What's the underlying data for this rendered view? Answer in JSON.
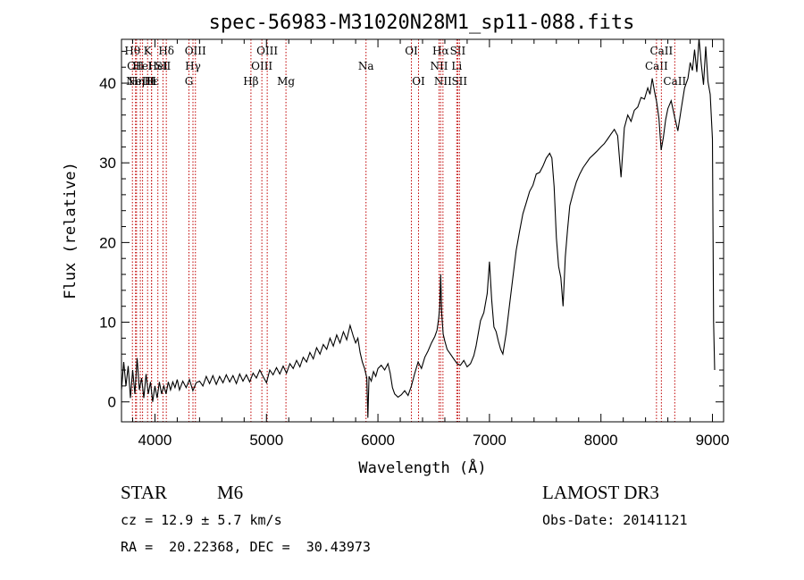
{
  "chart_data": {
    "type": "line",
    "title": "spec-56983-M31020N28M1_sp11-088.fits",
    "xlabel": "Wavelength (Å)",
    "ylabel": "Flux (relative)",
    "xlim": [
      3700,
      9100
    ],
    "ylim": [
      -2.5,
      45.5
    ],
    "xticks": [
      4000,
      5000,
      6000,
      7000,
      8000,
      9000
    ],
    "yticks": [
      0,
      10,
      20,
      30,
      40
    ],
    "grid": false,
    "series": [
      {
        "points": [
          [
            3700,
            1.5
          ],
          [
            3720,
            5.0
          ],
          [
            3740,
            2.0
          ],
          [
            3760,
            4.5
          ],
          [
            3780,
            0.5
          ],
          [
            3800,
            4.0
          ],
          [
            3820,
            1.0
          ],
          [
            3840,
            5.5
          ],
          [
            3860,
            1.5
          ],
          [
            3880,
            3.0
          ],
          [
            3900,
            0.5
          ],
          [
            3920,
            3.5
          ],
          [
            3940,
            1.0
          ],
          [
            3960,
            2.5
          ],
          [
            3980,
            0.0
          ],
          [
            4000,
            2.0
          ],
          [
            4020,
            0.5
          ],
          [
            4040,
            2.5
          ],
          [
            4060,
            1.0
          ],
          [
            4080,
            2.0
          ],
          [
            4100,
            1.0
          ],
          [
            4120,
            2.5
          ],
          [
            4140,
            1.5
          ],
          [
            4160,
            2.5
          ],
          [
            4180,
            1.8
          ],
          [
            4200,
            2.8
          ],
          [
            4220,
            1.5
          ],
          [
            4250,
            2.6
          ],
          [
            4280,
            1.8
          ],
          [
            4310,
            2.8
          ],
          [
            4340,
            1.4
          ],
          [
            4370,
            2.4
          ],
          [
            4400,
            2.6
          ],
          [
            4430,
            2.0
          ],
          [
            4460,
            3.2
          ],
          [
            4490,
            2.3
          ],
          [
            4520,
            3.3
          ],
          [
            4550,
            2.2
          ],
          [
            4580,
            3.2
          ],
          [
            4610,
            2.4
          ],
          [
            4640,
            3.4
          ],
          [
            4670,
            2.5
          ],
          [
            4700,
            3.3
          ],
          [
            4730,
            2.3
          ],
          [
            4760,
            3.5
          ],
          [
            4790,
            2.6
          ],
          [
            4820,
            3.4
          ],
          [
            4850,
            2.5
          ],
          [
            4880,
            3.6
          ],
          [
            4910,
            3.0
          ],
          [
            4940,
            4.0
          ],
          [
            4970,
            3.2
          ],
          [
            5000,
            2.4
          ],
          [
            5030,
            4.0
          ],
          [
            5060,
            3.4
          ],
          [
            5090,
            4.3
          ],
          [
            5120,
            3.5
          ],
          [
            5150,
            4.5
          ],
          [
            5180,
            3.6
          ],
          [
            5210,
            4.8
          ],
          [
            5240,
            4.2
          ],
          [
            5270,
            5.2
          ],
          [
            5300,
            4.4
          ],
          [
            5330,
            5.6
          ],
          [
            5360,
            5.0
          ],
          [
            5390,
            6.2
          ],
          [
            5420,
            5.4
          ],
          [
            5450,
            6.8
          ],
          [
            5480,
            6.0
          ],
          [
            5510,
            7.2
          ],
          [
            5540,
            6.6
          ],
          [
            5570,
            8.0
          ],
          [
            5600,
            7.0
          ],
          [
            5630,
            8.4
          ],
          [
            5660,
            7.4
          ],
          [
            5690,
            8.8
          ],
          [
            5720,
            7.8
          ],
          [
            5750,
            9.6
          ],
          [
            5780,
            8.2
          ],
          [
            5800,
            7.4
          ],
          [
            5820,
            8.0
          ],
          [
            5840,
            6.2
          ],
          [
            5860,
            5.0
          ],
          [
            5880,
            4.2
          ],
          [
            5900,
            3.0
          ],
          [
            5910,
            -2.0
          ],
          [
            5920,
            3.2
          ],
          [
            5940,
            2.6
          ],
          [
            5960,
            3.8
          ],
          [
            5980,
            3.2
          ],
          [
            6000,
            4.2
          ],
          [
            6030,
            4.6
          ],
          [
            6060,
            4.0
          ],
          [
            6090,
            4.8
          ],
          [
            6110,
            3.6
          ],
          [
            6130,
            1.8
          ],
          [
            6150,
            1.0
          ],
          [
            6180,
            0.6
          ],
          [
            6210,
            0.9
          ],
          [
            6240,
            1.4
          ],
          [
            6270,
            0.8
          ],
          [
            6300,
            2.0
          ],
          [
            6330,
            3.6
          ],
          [
            6360,
            5.0
          ],
          [
            6390,
            4.2
          ],
          [
            6420,
            5.6
          ],
          [
            6450,
            6.4
          ],
          [
            6480,
            7.4
          ],
          [
            6510,
            8.2
          ],
          [
            6530,
            9.0
          ],
          [
            6545,
            10.5
          ],
          [
            6555,
            12.0
          ],
          [
            6563,
            16.0
          ],
          [
            6572,
            11.0
          ],
          [
            6585,
            8.5
          ],
          [
            6600,
            7.6
          ],
          [
            6620,
            6.6
          ],
          [
            6650,
            6.0
          ],
          [
            6680,
            5.4
          ],
          [
            6710,
            4.8
          ],
          [
            6740,
            4.6
          ],
          [
            6770,
            5.2
          ],
          [
            6800,
            4.4
          ],
          [
            6830,
            4.8
          ],
          [
            6860,
            5.8
          ],
          [
            6880,
            7.0
          ],
          [
            6900,
            8.6
          ],
          [
            6920,
            10.2
          ],
          [
            6950,
            11.2
          ],
          [
            6980,
            13.6
          ],
          [
            7000,
            17.6
          ],
          [
            7020,
            12.8
          ],
          [
            7040,
            9.4
          ],
          [
            7060,
            8.8
          ],
          [
            7080,
            7.6
          ],
          [
            7100,
            6.6
          ],
          [
            7120,
            6.0
          ],
          [
            7150,
            8.6
          ],
          [
            7180,
            12.2
          ],
          [
            7210,
            15.6
          ],
          [
            7240,
            19.0
          ],
          [
            7270,
            21.4
          ],
          [
            7300,
            23.6
          ],
          [
            7330,
            25.0
          ],
          [
            7360,
            26.4
          ],
          [
            7390,
            27.2
          ],
          [
            7420,
            28.6
          ],
          [
            7450,
            28.8
          ],
          [
            7480,
            29.6
          ],
          [
            7510,
            30.6
          ],
          [
            7540,
            31.2
          ],
          [
            7560,
            30.6
          ],
          [
            7580,
            27.0
          ],
          [
            7600,
            20.6
          ],
          [
            7620,
            17.0
          ],
          [
            7640,
            15.6
          ],
          [
            7660,
            12.0
          ],
          [
            7680,
            18.2
          ],
          [
            7700,
            21.6
          ],
          [
            7720,
            24.6
          ],
          [
            7750,
            26.2
          ],
          [
            7780,
            27.6
          ],
          [
            7810,
            28.6
          ],
          [
            7840,
            29.4
          ],
          [
            7870,
            30.0
          ],
          [
            7900,
            30.6
          ],
          [
            7930,
            31.0
          ],
          [
            7960,
            31.4
          ],
          [
            8000,
            32.0
          ],
          [
            8030,
            32.4
          ],
          [
            8060,
            33.0
          ],
          [
            8090,
            33.6
          ],
          [
            8120,
            34.2
          ],
          [
            8150,
            33.4
          ],
          [
            8180,
            28.2
          ],
          [
            8210,
            34.4
          ],
          [
            8240,
            36.0
          ],
          [
            8270,
            35.2
          ],
          [
            8300,
            36.6
          ],
          [
            8330,
            37.0
          ],
          [
            8360,
            38.2
          ],
          [
            8390,
            38.0
          ],
          [
            8420,
            39.4
          ],
          [
            8440,
            38.6
          ],
          [
            8460,
            40.6
          ],
          [
            8480,
            39.0
          ],
          [
            8500,
            37.6
          ],
          [
            8520,
            35.6
          ],
          [
            8540,
            31.6
          ],
          [
            8560,
            33.2
          ],
          [
            8580,
            35.4
          ],
          [
            8600,
            36.8
          ],
          [
            8630,
            37.8
          ],
          [
            8660,
            35.8
          ],
          [
            8690,
            34.0
          ],
          [
            8720,
            36.8
          ],
          [
            8750,
            39.4
          ],
          [
            8780,
            40.6
          ],
          [
            8800,
            42.6
          ],
          [
            8820,
            41.6
          ],
          [
            8840,
            44.2
          ],
          [
            8860,
            41.4
          ],
          [
            8880,
            45.6
          ],
          [
            8900,
            42.4
          ],
          [
            8920,
            39.8
          ],
          [
            8940,
            44.6
          ],
          [
            8960,
            40.2
          ],
          [
            8980,
            38.6
          ],
          [
            9000,
            33.0
          ],
          [
            9010,
            10.0
          ],
          [
            9020,
            4.0
          ]
        ]
      }
    ],
    "lines": [
      {
        "w": 3798,
        "label": "Hθ",
        "row": 1
      },
      {
        "w": 3826,
        "label": "OII",
        "row": 2
      },
      {
        "w": 3835,
        "label": "Hη",
        "row": 3
      },
      {
        "w": 3869,
        "label": "NeIII",
        "row": 3
      },
      {
        "w": 3889,
        "label": "HeI",
        "row": 2
      },
      {
        "w": 3934,
        "label": "K",
        "row": 1
      },
      {
        "w": 3970,
        "label": "Hε",
        "row": 3
      },
      {
        "w": 3969,
        "label": "H",
        "row": 3
      },
      {
        "w": 4026,
        "label": "HeI",
        "row": 2
      },
      {
        "w": 4072,
        "label": "SII",
        "row": 2
      },
      {
        "w": 4102,
        "label": "Hδ",
        "row": 1
      },
      {
        "w": 4305,
        "label": "G",
        "row": 3
      },
      {
        "w": 4341,
        "label": "Hγ",
        "row": 2
      },
      {
        "w": 4363,
        "label": "OIII",
        "row": 1
      },
      {
        "w": 4861,
        "label": "Hβ",
        "row": 3
      },
      {
        "w": 4959,
        "label": "OIII",
        "row": 2
      },
      {
        "w": 5007,
        "label": "OIII",
        "row": 1
      },
      {
        "w": 5175,
        "label": "Mg",
        "row": 3
      },
      {
        "w": 5893,
        "label": "Na",
        "row": 2
      },
      {
        "w": 6300,
        "label": "OI",
        "row": 1
      },
      {
        "w": 6364,
        "label": "OI",
        "row": 3
      },
      {
        "w": 6548,
        "label": "NII",
        "row": 2
      },
      {
        "w": 6563,
        "label": "Hα",
        "row": 1
      },
      {
        "w": 6583,
        "label": "NII",
        "row": 3
      },
      {
        "w": 6707,
        "label": "Li",
        "row": 2
      },
      {
        "w": 6716,
        "label": "SII",
        "row": 1
      },
      {
        "w": 6731,
        "label": "SII",
        "row": 3
      },
      {
        "w": 8498,
        "label": "CaII",
        "row": 2
      },
      {
        "w": 8542,
        "label": "CaII",
        "row": 1
      },
      {
        "w": 8662,
        "label": "CaII",
        "row": 3
      }
    ]
  },
  "info": {
    "class": "STAR",
    "subclass": "M6",
    "survey": "LAMOST DR3",
    "cz": "cz = 12.9 ± 5.7 km/s",
    "obs_date": "Obs-Date: 20141121",
    "coords": "RA =  20.22368, DEC =  30.43973"
  }
}
